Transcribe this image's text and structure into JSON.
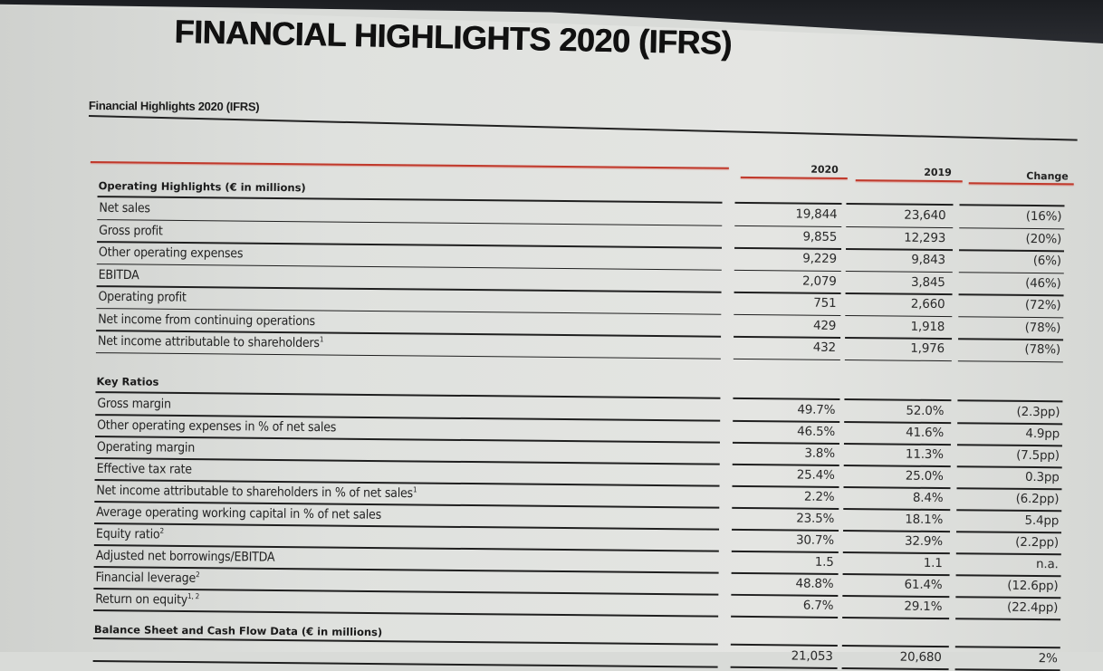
{
  "page": {
    "title": "FINANCIAL HIGHLIGHTS 2020 (IFRS)",
    "subtitle": "Financial Highlights 2020 (IFRS)"
  },
  "columns": {
    "c2020": "2020",
    "c2019": "2019",
    "change": "Change"
  },
  "operating": {
    "title": "Operating Highlights (€ in millions)",
    "rows": [
      {
        "label": "Net sales",
        "sup": "",
        "v2020": "19,844",
        "v2019": "23,640",
        "change": "(16%)"
      },
      {
        "label": "Gross profit",
        "sup": "",
        "v2020": "9,855",
        "v2019": "12,293",
        "change": "(20%)"
      },
      {
        "label": "Other operating expenses",
        "sup": "",
        "v2020": "9,229",
        "v2019": "9,843",
        "change": "(6%)"
      },
      {
        "label": "EBITDA",
        "sup": "",
        "v2020": "2,079",
        "v2019": "3,845",
        "change": "(46%)"
      },
      {
        "label": "Operating profit",
        "sup": "",
        "v2020": "751",
        "v2019": "2,660",
        "change": "(72%)"
      },
      {
        "label": "Net income from continuing operations",
        "sup": "",
        "v2020": "429",
        "v2019": "1,918",
        "change": "(78%)"
      },
      {
        "label": "Net income attributable to shareholders",
        "sup": "1",
        "v2020": "432",
        "v2019": "1,976",
        "change": "(78%)"
      }
    ]
  },
  "ratios": {
    "title": "Key Ratios",
    "rows": [
      {
        "label": "Gross margin",
        "sup": "",
        "v2020": "49.7%",
        "v2019": "52.0%",
        "change": "(2.3pp)"
      },
      {
        "label": "Other operating expenses in % of net sales",
        "sup": "",
        "v2020": "46.5%",
        "v2019": "41.6%",
        "change": "4.9pp"
      },
      {
        "label": "Operating margin",
        "sup": "",
        "v2020": "3.8%",
        "v2019": "11.3%",
        "change": "(7.5pp)"
      },
      {
        "label": "Effective tax rate",
        "sup": "",
        "v2020": "25.4%",
        "v2019": "25.0%",
        "change": "0.3pp"
      },
      {
        "label": "Net income attributable to shareholders in % of net sales",
        "sup": "1",
        "v2020": "2.2%",
        "v2019": "8.4%",
        "change": "(6.2pp)"
      },
      {
        "label": "Average operating working capital in % of net sales",
        "sup": "",
        "v2020": "23.5%",
        "v2019": "18.1%",
        "change": "5.4pp"
      },
      {
        "label": "Equity ratio",
        "sup": "2",
        "v2020": "30.7%",
        "v2019": "32.9%",
        "change": "(2.2pp)"
      },
      {
        "label": "Adjusted net borrowings/EBITDA",
        "sup": "",
        "v2020": "1.5",
        "v2019": "1.1",
        "change": "n.a."
      },
      {
        "label": "Financial leverage",
        "sup": "2",
        "v2020": "48.8%",
        "v2019": "61.4%",
        "change": "(12.6pp)"
      },
      {
        "label": "Return on equity",
        "sup": "1, 2",
        "v2020": "6.7%",
        "v2019": "29.1%",
        "change": "(22.4pp)"
      }
    ]
  },
  "balance": {
    "title": "Balance Sheet and Cash Flow Data (€ in millions)",
    "rows": [
      {
        "label": "",
        "sup": "",
        "v2020": "21,053",
        "v2019": "20,680",
        "change": "2%"
      }
    ]
  },
  "colors": {
    "accent_red": "#c0392b",
    "rule": "#1f1f1f",
    "bezel": "#1c1e22"
  }
}
